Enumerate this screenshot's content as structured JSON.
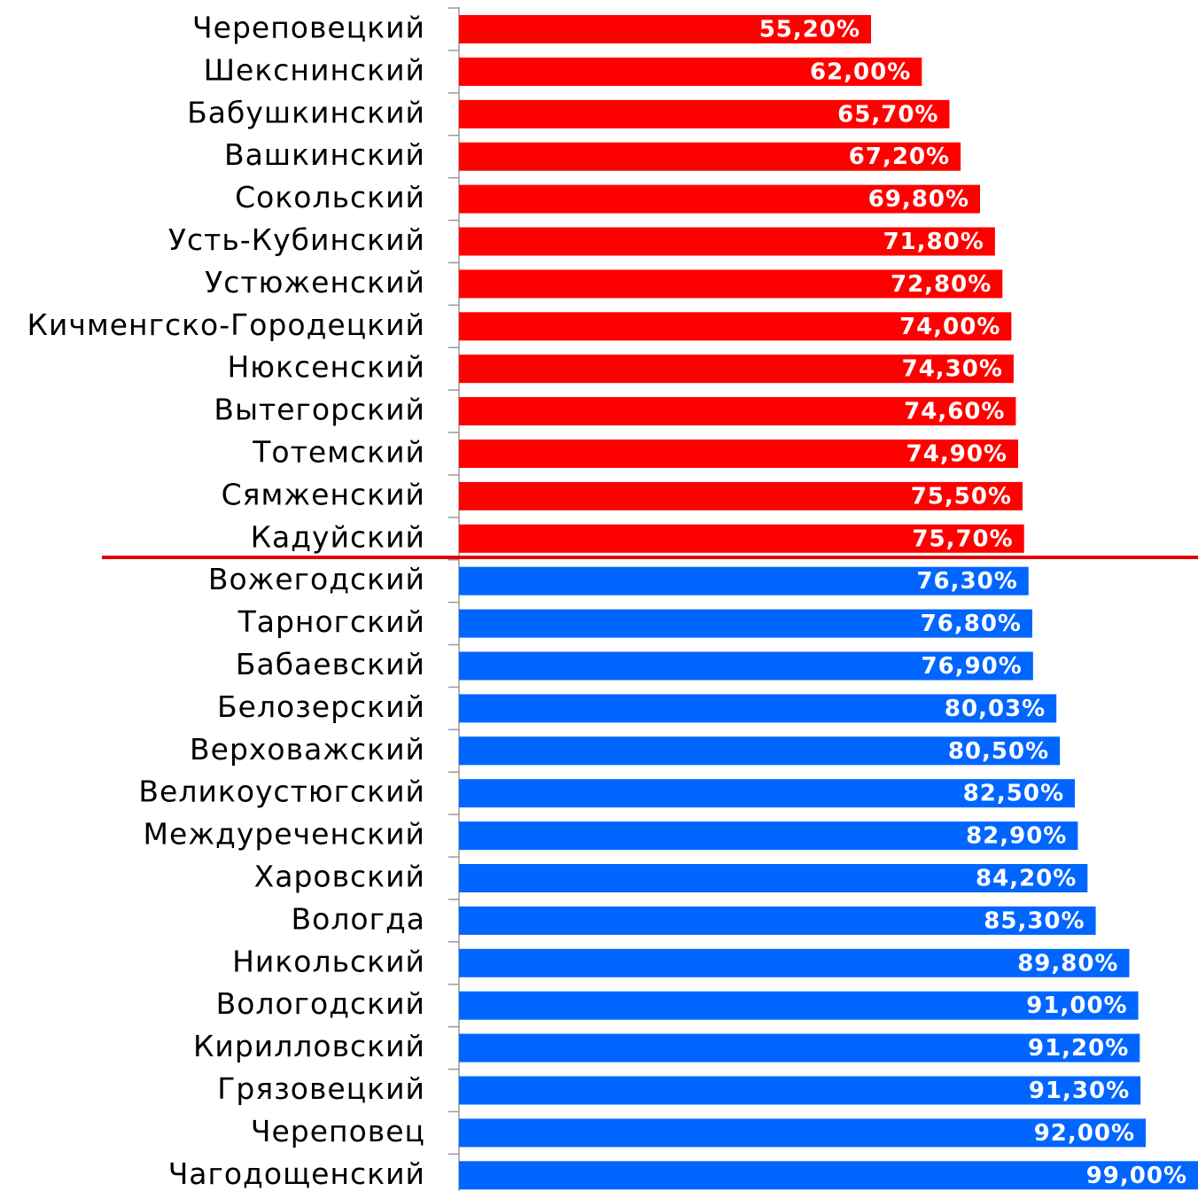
{
  "chart_data": {
    "type": "barh",
    "categories": [
      "Череповецкий",
      "Шекснинский",
      "Бабушкинский",
      "Вашкинский",
      "Сокольский",
      "Усть-Кубинский",
      "Устюженский",
      "Кичменгско-Городецкий",
      "Нюксенский",
      "Вытегорский",
      "Тотемский",
      "Сямженский",
      "Кадуйский",
      "Вожегодский",
      "Тарногский",
      "Бабаевский",
      "Белозерский",
      "Верховажский",
      "Великоустюгский",
      "Междуреченский",
      "Харовский",
      "Вологда",
      "Никольский",
      "Вологодский",
      "Кирилловский",
      "Грязовецкий",
      "Череповец",
      "Чагодощенский"
    ],
    "values": [
      55.2,
      62.0,
      65.7,
      67.2,
      69.8,
      71.8,
      72.8,
      74.0,
      74.3,
      74.6,
      74.9,
      75.5,
      75.7,
      76.3,
      76.8,
      76.9,
      80.03,
      80.5,
      82.5,
      82.9,
      84.2,
      85.3,
      89.8,
      91.0,
      91.2,
      91.3,
      92.0,
      99.0
    ],
    "value_labels": [
      "55,20%",
      "62,00%",
      "65,70%",
      "67,20%",
      "69,80%",
      "71,80%",
      "72,80%",
      "74,00%",
      "74,30%",
      "74,60%",
      "74,90%",
      "75,50%",
      "75,70%",
      "76,30%",
      "76,80%",
      "76,90%",
      "80,03%",
      "80,50%",
      "82,50%",
      "82,90%",
      "84,20%",
      "85,30%",
      "89,80%",
      "91,00%",
      "91,20%",
      "91,30%",
      "92,00%",
      "99,00%"
    ],
    "colors": [
      "#ff0000",
      "#ff0000",
      "#ff0000",
      "#ff0000",
      "#ff0000",
      "#ff0000",
      "#ff0000",
      "#ff0000",
      "#ff0000",
      "#ff0000",
      "#ff0000",
      "#ff0000",
      "#ff0000",
      "#0066ff",
      "#0066ff",
      "#0066ff",
      "#0066ff",
      "#0066ff",
      "#0066ff",
      "#0066ff",
      "#0066ff",
      "#0066ff",
      "#0066ff",
      "#0066ff",
      "#0066ff",
      "#0066ff",
      "#0066ff",
      "#0066ff"
    ],
    "xlim": [
      0,
      99
    ]
  }
}
